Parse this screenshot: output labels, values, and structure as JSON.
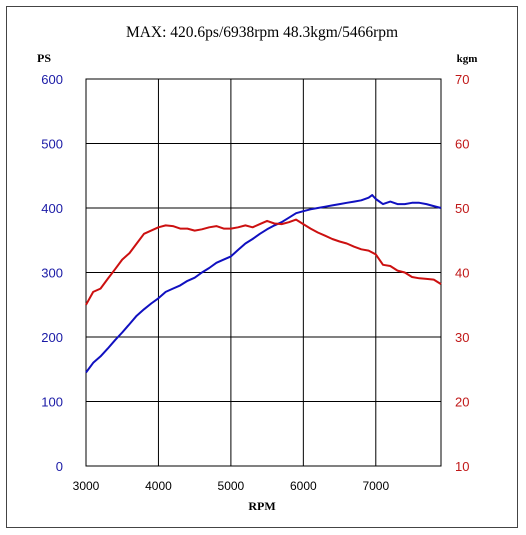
{
  "chart_data": {
    "type": "line",
    "title": "MAX: 420.6ps/6938rpm   48.3kgm/5466rpm",
    "xlabel": "RPM",
    "y_left_label": "PS",
    "y_right_label": "kgm",
    "xlim": [
      3000,
      7900
    ],
    "y_left_lim": [
      0,
      600
    ],
    "y_right_lim": [
      10,
      70
    ],
    "x_ticks": [
      "3000",
      "4000",
      "5000",
      "6000",
      "7000"
    ],
    "y_left_ticks": [
      "600",
      "500",
      "400",
      "300",
      "200",
      "100",
      "0"
    ],
    "y_right_ticks": [
      "70",
      "60",
      "50",
      "40",
      "30",
      "20",
      "10"
    ],
    "grid": true,
    "colors": {
      "power": "#1010c0",
      "torque": "#cc1010",
      "left_axis": "#1a1aa6",
      "right_axis": "#c01818"
    },
    "series": [
      {
        "axis": "left",
        "x": [
          3000,
          3100,
          3200,
          3300,
          3400,
          3500,
          3600,
          3700,
          3800,
          3900,
          4000,
          4100,
          4200,
          4300,
          4400,
          4500,
          4600,
          4700,
          4800,
          4900,
          5000,
          5100,
          5200,
          5300,
          5400,
          5500,
          5600,
          5700,
          5800,
          5900,
          6000,
          6100,
          6200,
          6300,
          6400,
          6500,
          6600,
          6700,
          6800,
          6900,
          6950,
          7000,
          7100,
          7200,
          7300,
          7400,
          7500,
          7600,
          7700,
          7800,
          7900
        ],
        "values": [
          145,
          160,
          170,
          182,
          195,
          207,
          220,
          233,
          243,
          252,
          260,
          270,
          275,
          280,
          287,
          292,
          300,
          307,
          315,
          320,
          325,
          335,
          345,
          352,
          360,
          367,
          373,
          378,
          385,
          392,
          395,
          398,
          400,
          402,
          404,
          406,
          408,
          410,
          412,
          416,
          420,
          414,
          406,
          410,
          406,
          406,
          408,
          408,
          406,
          403,
          400
        ]
      },
      {
        "axis": "right",
        "x": [
          3000,
          3100,
          3200,
          3300,
          3400,
          3500,
          3600,
          3700,
          3800,
          3900,
          4000,
          4100,
          4200,
          4300,
          4400,
          4500,
          4600,
          4700,
          4800,
          4900,
          5000,
          5100,
          5200,
          5300,
          5400,
          5500,
          5600,
          5700,
          5800,
          5900,
          6000,
          6100,
          6200,
          6300,
          6400,
          6500,
          6600,
          6700,
          6800,
          6900,
          7000,
          7100,
          7200,
          7300,
          7400,
          7500,
          7600,
          7700,
          7800,
          7900
        ],
        "values": [
          35,
          37,
          37.5,
          39,
          40.5,
          42,
          43,
          44.5,
          46,
          46.5,
          47,
          47.3,
          47.2,
          46.8,
          46.8,
          46.5,
          46.7,
          47,
          47.2,
          46.8,
          46.8,
          47,
          47.3,
          47,
          47.5,
          48,
          47.6,
          47.5,
          47.8,
          48.2,
          47.5,
          46.8,
          46.2,
          45.7,
          45.2,
          44.8,
          44.5,
          44,
          43.6,
          43.4,
          42.8,
          41.2,
          41,
          40.3,
          40,
          39.3,
          39.1,
          39,
          38.9,
          38.2
        ]
      }
    ]
  }
}
